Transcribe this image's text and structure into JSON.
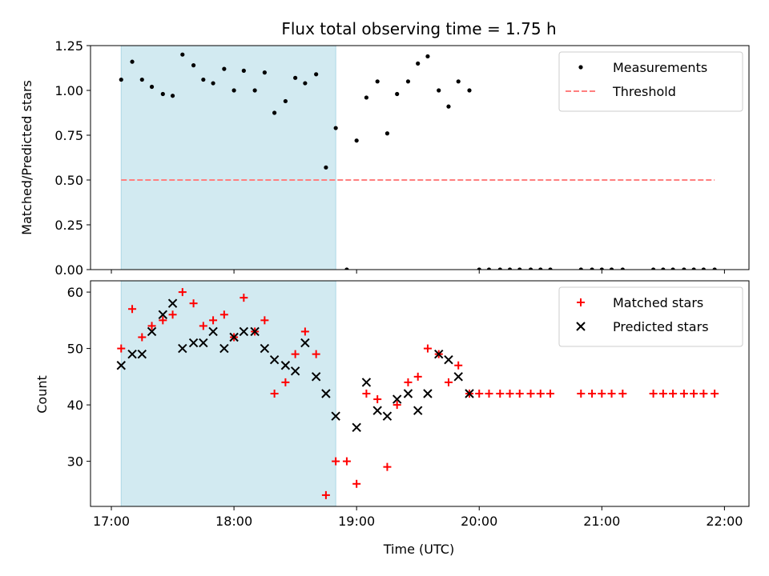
{
  "figure": {
    "title": "Flux total observing time = 1.75 h"
  },
  "colors": {
    "shade": "#add8e6",
    "measurement": "#000000",
    "threshold": "#ff7f7f",
    "matched": "#ff0000",
    "predicted": "#000000"
  },
  "chart_data": [
    {
      "type": "scatter",
      "panel": "top",
      "title": "Flux total observing time = 1.75 h",
      "xlabel": "",
      "ylabel": "Matched/Predicted stars",
      "x_unit": "hours of day (UTC)",
      "xlim": [
        16.83,
        22.2
      ],
      "ylim": [
        0,
        1.25
      ],
      "yticks": [
        "0.00",
        "0.25",
        "0.50",
        "0.75",
        "1.00",
        "1.25"
      ],
      "shaded_interval": [
        17.08,
        18.83
      ],
      "legend_position": "top-right",
      "grid": false,
      "series": [
        {
          "name": "Measurements",
          "style": "dot",
          "x": [
            17.08,
            17.17,
            17.25,
            17.33,
            17.42,
            17.5,
            17.58,
            17.67,
            17.75,
            17.83,
            17.92,
            18.0,
            18.08,
            18.17,
            18.25,
            18.33,
            18.42,
            18.5,
            18.58,
            18.67,
            18.75,
            18.83,
            18.92,
            19.0,
            19.08,
            19.17,
            19.25,
            19.33,
            19.42,
            19.5,
            19.58,
            19.67,
            19.75,
            19.83,
            19.92,
            20.0,
            20.08,
            20.17,
            20.25,
            20.33,
            20.42,
            20.5,
            20.58,
            20.83,
            20.92,
            21.0,
            21.08,
            21.17,
            21.42,
            21.5,
            21.58,
            21.67,
            21.75,
            21.83,
            21.92
          ],
          "y": [
            1.06,
            1.16,
            1.06,
            1.02,
            0.98,
            0.97,
            1.2,
            1.14,
            1.06,
            1.04,
            1.12,
            1.0,
            1.11,
            1.0,
            1.1,
            0.875,
            0.94,
            1.07,
            1.04,
            1.09,
            0.57,
            0.79,
            0.0,
            0.72,
            0.96,
            1.05,
            0.76,
            0.98,
            1.05,
            1.15,
            1.19,
            1.0,
            0.91,
            1.05,
            1.0,
            0.0,
            0.0,
            0.0,
            0.0,
            0.0,
            0.0,
            0.0,
            0.0,
            0.0,
            0.0,
            0.0,
            0.0,
            0.0,
            0.0,
            0.0,
            0.0,
            0.0,
            0.0,
            0.0,
            0.0
          ]
        },
        {
          "name": "Threshold",
          "style": "dashed-line",
          "x": [
            17.08,
            21.92
          ],
          "y": [
            0.5,
            0.5
          ]
        }
      ]
    },
    {
      "type": "scatter",
      "panel": "bottom",
      "xlabel": "Time (UTC)",
      "ylabel": "Count",
      "x_unit": "hours of day (UTC)",
      "xlim": [
        16.83,
        22.2
      ],
      "ylim": [
        22,
        62
      ],
      "xticks": [
        "17:00",
        "18:00",
        "19:00",
        "20:00",
        "21:00",
        "22:00"
      ],
      "yticks": [
        "30",
        "40",
        "50",
        "60"
      ],
      "shaded_interval": [
        17.08,
        18.83
      ],
      "legend_position": "top-right",
      "grid": false,
      "series": [
        {
          "name": "Matched stars",
          "marker": "plus",
          "x": [
            17.08,
            17.17,
            17.25,
            17.33,
            17.42,
            17.5,
            17.58,
            17.67,
            17.75,
            17.83,
            17.92,
            18.0,
            18.08,
            18.17,
            18.25,
            18.33,
            18.42,
            18.5,
            18.58,
            18.67,
            18.75,
            18.83,
            18.92,
            19.0,
            19.08,
            19.17,
            19.25,
            19.33,
            19.42,
            19.5,
            19.58,
            19.67,
            19.75,
            19.83,
            19.92,
            20.0,
            20.08,
            20.17,
            20.25,
            20.33,
            20.42,
            20.5,
            20.58,
            20.83,
            20.92,
            21.0,
            21.08,
            21.17,
            21.42,
            21.5,
            21.58,
            21.67,
            21.75,
            21.83,
            21.92
          ],
          "y": [
            50,
            57,
            52,
            54,
            55,
            56,
            60,
            58,
            54,
            55,
            56,
            52,
            59,
            53,
            55,
            42,
            44,
            49,
            53,
            49,
            24,
            30,
            30,
            26,
            42,
            41,
            29,
            40,
            44,
            45,
            50,
            49,
            44,
            47,
            42,
            42,
            42,
            42,
            42,
            42,
            42,
            42,
            42,
            42,
            42,
            42,
            42,
            42,
            42,
            42,
            42,
            42,
            42,
            42,
            42
          ]
        },
        {
          "name": "Predicted stars",
          "marker": "x",
          "x": [
            17.08,
            17.17,
            17.25,
            17.33,
            17.42,
            17.5,
            17.58,
            17.67,
            17.75,
            17.83,
            17.92,
            18.0,
            18.08,
            18.17,
            18.25,
            18.33,
            18.42,
            18.5,
            18.58,
            18.67,
            18.75,
            18.83,
            19.0,
            19.08,
            19.17,
            19.25,
            19.33,
            19.42,
            19.5,
            19.58,
            19.67,
            19.75,
            19.83,
            19.92
          ],
          "y": [
            47,
            49,
            49,
            53,
            56,
            58,
            50,
            51,
            51,
            53,
            50,
            52,
            53,
            53,
            50,
            48,
            47,
            46,
            51,
            45,
            42,
            38,
            36,
            44,
            39,
            38,
            41,
            42,
            39,
            42,
            49,
            48,
            45,
            42
          ]
        }
      ]
    }
  ]
}
